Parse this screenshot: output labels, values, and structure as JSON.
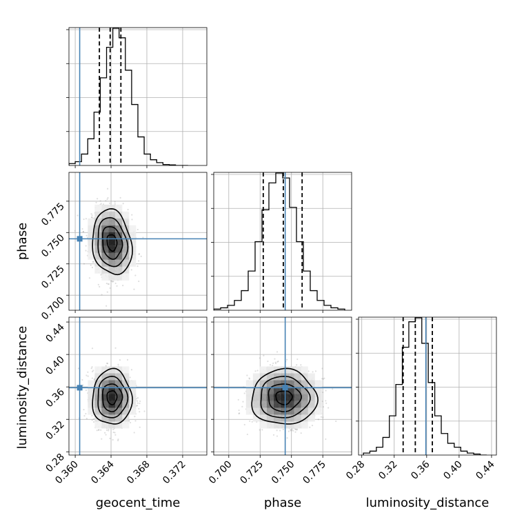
{
  "chart_data": {
    "type": "corner",
    "parameters": [
      "geocent_time",
      "phase",
      "luminosity_distance"
    ],
    "truths": {
      "geocent_time": 0.3605,
      "phase": 0.745,
      "luminosity_distance": 0.359
    },
    "colors": {
      "truth": "#4682b4",
      "histogram": "#000000",
      "grid": "#b0b0b0"
    },
    "grid": true,
    "panels": [
      {
        "id": "hist-geocent_time",
        "kind": "histogram",
        "param": "geocent_time",
        "xlim": [
          0.3593,
          0.3747
        ],
        "bin_edges": [
          0.3593,
          0.36,
          0.3607,
          0.3614,
          0.3621,
          0.3628,
          0.3635,
          0.3642,
          0.3649,
          0.3656,
          0.3663,
          0.367,
          0.3677,
          0.3684,
          0.3691,
          0.3698,
          0.3705,
          0.3712,
          0.3719,
          0.3726
        ],
        "counts": [
          1,
          2,
          6,
          14,
          28,
          46,
          62,
          72,
          67,
          50,
          32,
          15,
          6,
          3,
          1.5,
          0.5,
          0.3,
          0,
          0
        ],
        "quantiles": [
          0.3627,
          0.3639,
          0.3651
        ],
        "xticks": [
          0.36,
          0.364,
          0.368,
          0.372
        ]
      },
      {
        "id": "hist-phase",
        "kind": "histogram",
        "param": "phase",
        "xlim": [
          0.688,
          0.798
        ],
        "bin_edges": [
          0.688,
          0.6935,
          0.699,
          0.7045,
          0.71,
          0.7155,
          0.721,
          0.7265,
          0.732,
          0.7375,
          0.743,
          0.7485,
          0.754,
          0.7595,
          0.765,
          0.7705,
          0.776,
          0.7815,
          0.787,
          0.7925
        ],
        "counts": [
          0.5,
          1,
          2,
          4,
          8,
          16,
          28,
          41,
          52,
          56,
          54,
          42,
          28,
          16,
          8,
          4,
          2,
          1,
          0.5
        ],
        "quantiles": [
          0.7275,
          0.7435,
          0.7585
        ],
        "xticks": [
          0.7,
          0.725,
          0.75,
          0.775
        ]
      },
      {
        "id": "hist-luminosity_distance",
        "kind": "histogram",
        "param": "luminosity_distance",
        "xlim": [
          0.276,
          0.446
        ],
        "bin_edges": [
          0.282,
          0.29,
          0.298,
          0.306,
          0.314,
          0.322,
          0.33,
          0.338,
          0.346,
          0.354,
          0.362,
          0.37,
          0.378,
          0.386,
          0.394,
          0.402,
          0.41,
          0.418,
          0.426,
          0.434
        ],
        "counts": [
          1,
          2,
          4,
          9,
          20,
          36,
          55,
          68,
          70,
          57,
          37,
          20,
          11,
          6,
          4,
          2,
          1,
          0.5,
          0
        ],
        "quantiles": [
          0.331,
          0.346,
          0.367
        ],
        "xticks": [
          0.28,
          0.32,
          0.36,
          0.4,
          0.44
        ]
      },
      {
        "id": "scatter-phase-vs-geocent_time",
        "kind": "2d",
        "x": "geocent_time",
        "y": "phase",
        "xlim": [
          0.3593,
          0.3747
        ],
        "ylim": [
          0.688,
          0.798
        ],
        "center": [
          0.3641,
          0.742
        ],
        "sigma": [
          0.0011,
          0.013
        ],
        "rho": -0.15,
        "yticks": [
          0.7,
          0.725,
          0.75,
          0.775
        ]
      },
      {
        "id": "scatter-luminosity_distance-vs-geocent_time",
        "kind": "2d",
        "x": "geocent_time",
        "y": "luminosity_distance",
        "xlim": [
          0.3593,
          0.3747
        ],
        "ylim": [
          0.276,
          0.446
        ],
        "center": [
          0.3641,
          0.347
        ],
        "sigma": [
          0.0011,
          0.017
        ],
        "rho": 0.0,
        "xticks": [
          0.36,
          0.364,
          0.368,
          0.372
        ],
        "yticks": [
          0.28,
          0.32,
          0.36,
          0.4,
          0.44
        ]
      },
      {
        "id": "scatter-luminosity_distance-vs-phase",
        "kind": "2d",
        "x": "phase",
        "y": "luminosity_distance",
        "xlim": [
          0.688,
          0.798
        ],
        "ylim": [
          0.276,
          0.446
        ],
        "center": [
          0.744,
          0.347
        ],
        "sigma": [
          0.013,
          0.017
        ],
        "rho": 0.0,
        "xticks": [
          0.7,
          0.725,
          0.75,
          0.775
        ]
      }
    ],
    "labels": {
      "y_phase": "phase",
      "y_luminosity_distance": "luminosity_distance",
      "x_geocent_time": "geocent_time",
      "x_phase": "phase",
      "x_luminosity_distance": "luminosity_distance"
    },
    "tick_labels": {
      "geocent_time": [
        "0.360",
        "0.364",
        "0.368",
        "0.372"
      ],
      "phase": [
        "0.700",
        "0.725",
        "0.750",
        "0.775"
      ],
      "luminosity_distance": [
        "0.28",
        "0.32",
        "0.36",
        "0.40",
        "0.44"
      ]
    }
  }
}
